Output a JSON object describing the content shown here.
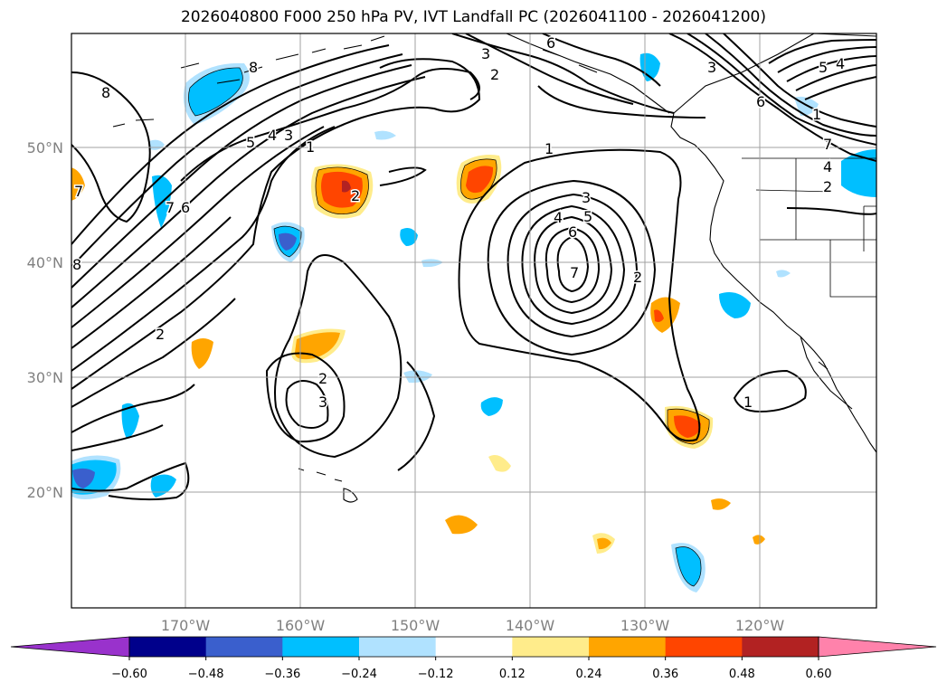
{
  "title": "2026040800 F000 250 hPa PV, IVT Landfall PC (2026041100 - 2026041200)",
  "lat_labels": [
    "50°N",
    "40°N",
    "30°N",
    "20°N"
  ],
  "lon_labels": [
    "170°W",
    "160°W",
    "150°W",
    "140°W",
    "130°W",
    "120°W"
  ],
  "colorbar": {
    "ticks": [
      "−0.60",
      "−0.48",
      "−0.36",
      "−0.24",
      "−0.12",
      "0.12",
      "0.24",
      "0.36",
      "0.48",
      "0.60"
    ],
    "colors": [
      "#9932cc",
      "#00008b",
      "#3a5fcd",
      "#00bfff",
      "#b0e2ff",
      "#ffffff",
      "#ffec8b",
      "#ffa500",
      "#ff4500",
      "#b22222",
      "#ff82ab"
    ]
  },
  "contour_labels": [
    "8",
    "5",
    "4",
    "3",
    "1",
    "7",
    "6",
    "2",
    "2",
    "3",
    "2",
    "1",
    "3",
    "4",
    "5",
    "6",
    "7",
    "2",
    "3",
    "2",
    "6",
    "5",
    "4",
    "3",
    "6",
    "7",
    "4",
    "2",
    "1",
    "8",
    "8",
    "1",
    "7"
  ]
}
